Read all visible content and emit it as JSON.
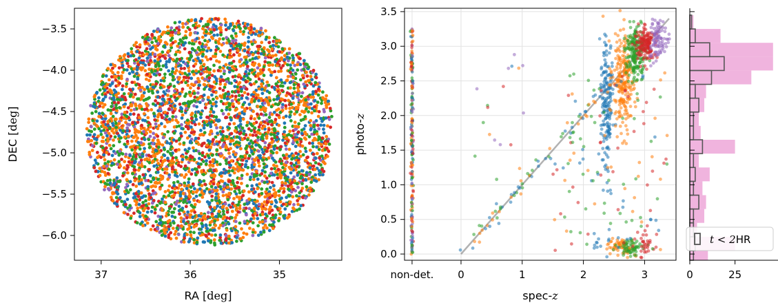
{
  "colors": {
    "blue": "#1f77b4",
    "orange": "#ff7f0e",
    "green": "#2ca02c",
    "red": "#d62728",
    "purple": "#9467bd",
    "pink": "#e377c2",
    "diag": "#7f7f7f"
  },
  "chart_data": [
    {
      "type": "scatter",
      "xlabel_text": "RA [",
      "xlabel_unit": "deg",
      "ylabel_text": "DEC [",
      "ylabel_unit": "deg",
      "xlim": [
        37.3,
        34.3
      ],
      "ylim": [
        -6.3,
        -3.25
      ],
      "xticks": [
        37,
        36,
        35
      ],
      "yticks": [
        -3.5,
        -4.0,
        -4.5,
        -5.0,
        -5.5,
        -6.0
      ],
      "xtick_labels": [
        "37",
        "36",
        "35"
      ],
      "ytick_labels": [
        "−3.5",
        "−4.0",
        "−4.5",
        "−5.0",
        "−5.5",
        "−6.0"
      ],
      "field": {
        "center_ra": 35.78,
        "center_dec": -4.74,
        "radius_deg": 1.38
      },
      "series": [
        {
          "color": "orange",
          "approx_points": 1400
        },
        {
          "color": "green",
          "approx_points": 1000
        },
        {
          "color": "blue",
          "approx_points": 800
        },
        {
          "color": "red",
          "approx_points": 700
        },
        {
          "color": "purple",
          "approx_points": 300
        }
      ]
    },
    {
      "type": "scatter",
      "xlabel": "spec-",
      "xlabel_var": "z",
      "ylabel": "photo-",
      "ylabel_var": "z",
      "xlim": [
        -0.3,
        3.42
      ],
      "ylim": [
        -0.08,
        3.5
      ],
      "xticks": [
        -0.8,
        0,
        1,
        2,
        3
      ],
      "xtick_labels": [
        "non-det.",
        "0",
        "1",
        "2",
        "3"
      ],
      "yticks": [
        0.0,
        0.5,
        1.0,
        1.5,
        2.0,
        2.5,
        3.0,
        3.5
      ],
      "ytick_labels": [
        "0.0",
        "0.5",
        "1.0",
        "1.5",
        "2.0",
        "2.5",
        "3.0",
        "3.5"
      ],
      "grid": true,
      "diagonal": [
        [
          0,
          0
        ],
        [
          3.5,
          3.5
        ]
      ],
      "nondet_x": -0.8,
      "clusters": [
        {
          "color": "blue",
          "x": 2.38,
          "y": 2.2,
          "sx": 0.05,
          "sy": 0.42,
          "n": 170
        },
        {
          "color": "orange",
          "x": 2.65,
          "y": 2.55,
          "sx": 0.1,
          "sy": 0.38,
          "n": 240
        },
        {
          "color": "green",
          "x": 2.85,
          "y": 2.9,
          "sx": 0.08,
          "sy": 0.2,
          "n": 200
        },
        {
          "color": "red",
          "x": 3.02,
          "y": 3.02,
          "sx": 0.07,
          "sy": 0.12,
          "n": 150
        },
        {
          "color": "purple",
          "x": 3.22,
          "y": 3.12,
          "sx": 0.07,
          "sy": 0.15,
          "n": 90
        },
        {
          "color": "orange",
          "x": 2.6,
          "y": 0.1,
          "sx": 0.12,
          "sy": 0.06,
          "n": 60
        },
        {
          "color": "green",
          "x": 2.78,
          "y": 0.1,
          "sx": 0.1,
          "sy": 0.06,
          "n": 60
        },
        {
          "color": "red",
          "x": 3.02,
          "y": 0.2,
          "sx": 0.08,
          "sy": 0.15,
          "n": 30
        },
        {
          "color": "blue",
          "x": 2.4,
          "y": 0.15,
          "sx": 0.15,
          "sy": 0.1,
          "n": 15
        }
      ]
    },
    {
      "type": "bar",
      "orientation": "horizontal",
      "xticks": [
        0,
        25
      ],
      "xtick_labels": [
        "0",
        "25"
      ],
      "xlim": [
        0,
        48
      ],
      "bins": [
        {
          "y0": 3.25,
          "y1": 3.45,
          "all": 2,
          "short": 1
        },
        {
          "y0": 3.05,
          "y1": 3.25,
          "all": 17,
          "short": 3
        },
        {
          "y0": 2.85,
          "y1": 3.05,
          "all": 46,
          "short": 11
        },
        {
          "y0": 2.65,
          "y1": 2.85,
          "all": 46,
          "short": 19
        },
        {
          "y0": 2.45,
          "y1": 2.65,
          "all": 34,
          "short": 12
        },
        {
          "y0": 2.25,
          "y1": 2.45,
          "all": 9,
          "short": 3
        },
        {
          "y0": 2.05,
          "y1": 2.25,
          "all": 8,
          "short": 5
        },
        {
          "y0": 1.85,
          "y1": 2.05,
          "all": 5,
          "short": 2
        },
        {
          "y0": 1.65,
          "y1": 1.85,
          "all": 6,
          "short": 2
        },
        {
          "y0": 1.45,
          "y1": 1.65,
          "all": 25,
          "short": 7
        },
        {
          "y0": 1.25,
          "y1": 1.45,
          "all": 5,
          "short": 2
        },
        {
          "y0": 1.05,
          "y1": 1.25,
          "all": 11,
          "short": 3
        },
        {
          "y0": 0.85,
          "y1": 1.05,
          "all": 7,
          "short": 2
        },
        {
          "y0": 0.65,
          "y1": 0.85,
          "all": 9,
          "short": 5
        },
        {
          "y0": 0.45,
          "y1": 0.65,
          "all": 8,
          "short": 2
        },
        {
          "y0": 0.25,
          "y1": 0.45,
          "all": 4,
          "short": 2
        },
        {
          "y0": 0.05,
          "y1": 0.25,
          "all": 25,
          "short": 3
        },
        {
          "y0": -0.15,
          "y1": 0.05,
          "all": 10,
          "short": 2
        }
      ],
      "legend": {
        "math": "t < 2",
        "suffix": "HR",
        "placement": "lower-right"
      }
    }
  ]
}
